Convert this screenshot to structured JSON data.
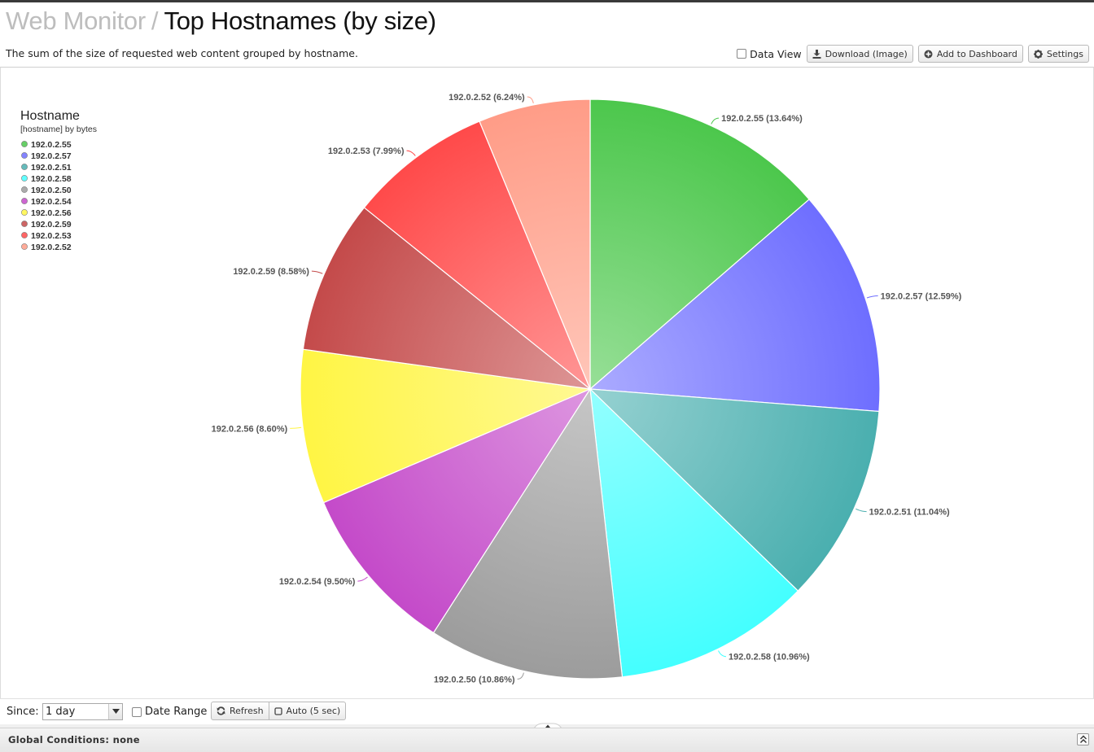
{
  "header": {
    "breadcrumb": "Web Monitor",
    "separator": "/",
    "title": "Top Hostnames (by size)",
    "subtitle": "The sum of the size of requested web content grouped by hostname."
  },
  "toolbar": {
    "data_view_label": "Data View",
    "download_label": "Download (Image)",
    "dashboard_label": "Add to Dashboard",
    "settings_label": "Settings"
  },
  "legend": {
    "title": "Hostname",
    "subtitle": "[hostname] by bytes"
  },
  "chart_data": {
    "type": "pie",
    "legend_position": "top-left",
    "slices": [
      {
        "label": "192.0.2.55",
        "value": 13.64,
        "display": "192.0.2.55 (13.64%)",
        "color": "#4cc74c"
      },
      {
        "label": "192.0.2.57",
        "value": 12.59,
        "display": "192.0.2.57 (12.59%)",
        "color": "#6e6eff"
      },
      {
        "label": "192.0.2.51",
        "value": 11.04,
        "display": "192.0.2.51 (11.04%)",
        "color": "#4aafaf"
      },
      {
        "label": "192.0.2.58",
        "value": 10.96,
        "display": "192.0.2.58 (10.96%)",
        "color": "#44ffff"
      },
      {
        "label": "192.0.2.50",
        "value": 10.86,
        "display": "192.0.2.50 (10.86%)",
        "color": "#9c9c9c"
      },
      {
        "label": "192.0.2.54",
        "value": 9.5,
        "display": "192.0.2.54 (9.50%)",
        "color": "#c44ac9"
      },
      {
        "label": "192.0.2.56",
        "value": 8.6,
        "display": "192.0.2.56 (8.60%)",
        "color": "#fff544"
      },
      {
        "label": "192.0.2.59",
        "value": 8.58,
        "display": "192.0.2.59 (8.58%)",
        "color": "#c44a4a"
      },
      {
        "label": "192.0.2.53",
        "value": 7.99,
        "display": "192.0.2.53 (7.99%)",
        "color": "#ff4a4a"
      },
      {
        "label": "192.0.2.52",
        "value": 6.24,
        "display": "192.0.2.52 (6.24%)",
        "color": "#ff9c87"
      }
    ]
  },
  "controls": {
    "since_label": "Since:",
    "since_value": "1 day",
    "date_range_label": "Date Range",
    "refresh_label": "Refresh",
    "auto_label": "Auto (5 sec)"
  },
  "footer": {
    "global_conditions": "Global Conditions: none"
  },
  "icons": {
    "download": "download-icon",
    "dashboard": "plus-circle-icon",
    "settings": "gear-icon",
    "refresh": "refresh-icon",
    "auto": "square-icon",
    "collapse": "double-chevron-up-icon"
  }
}
